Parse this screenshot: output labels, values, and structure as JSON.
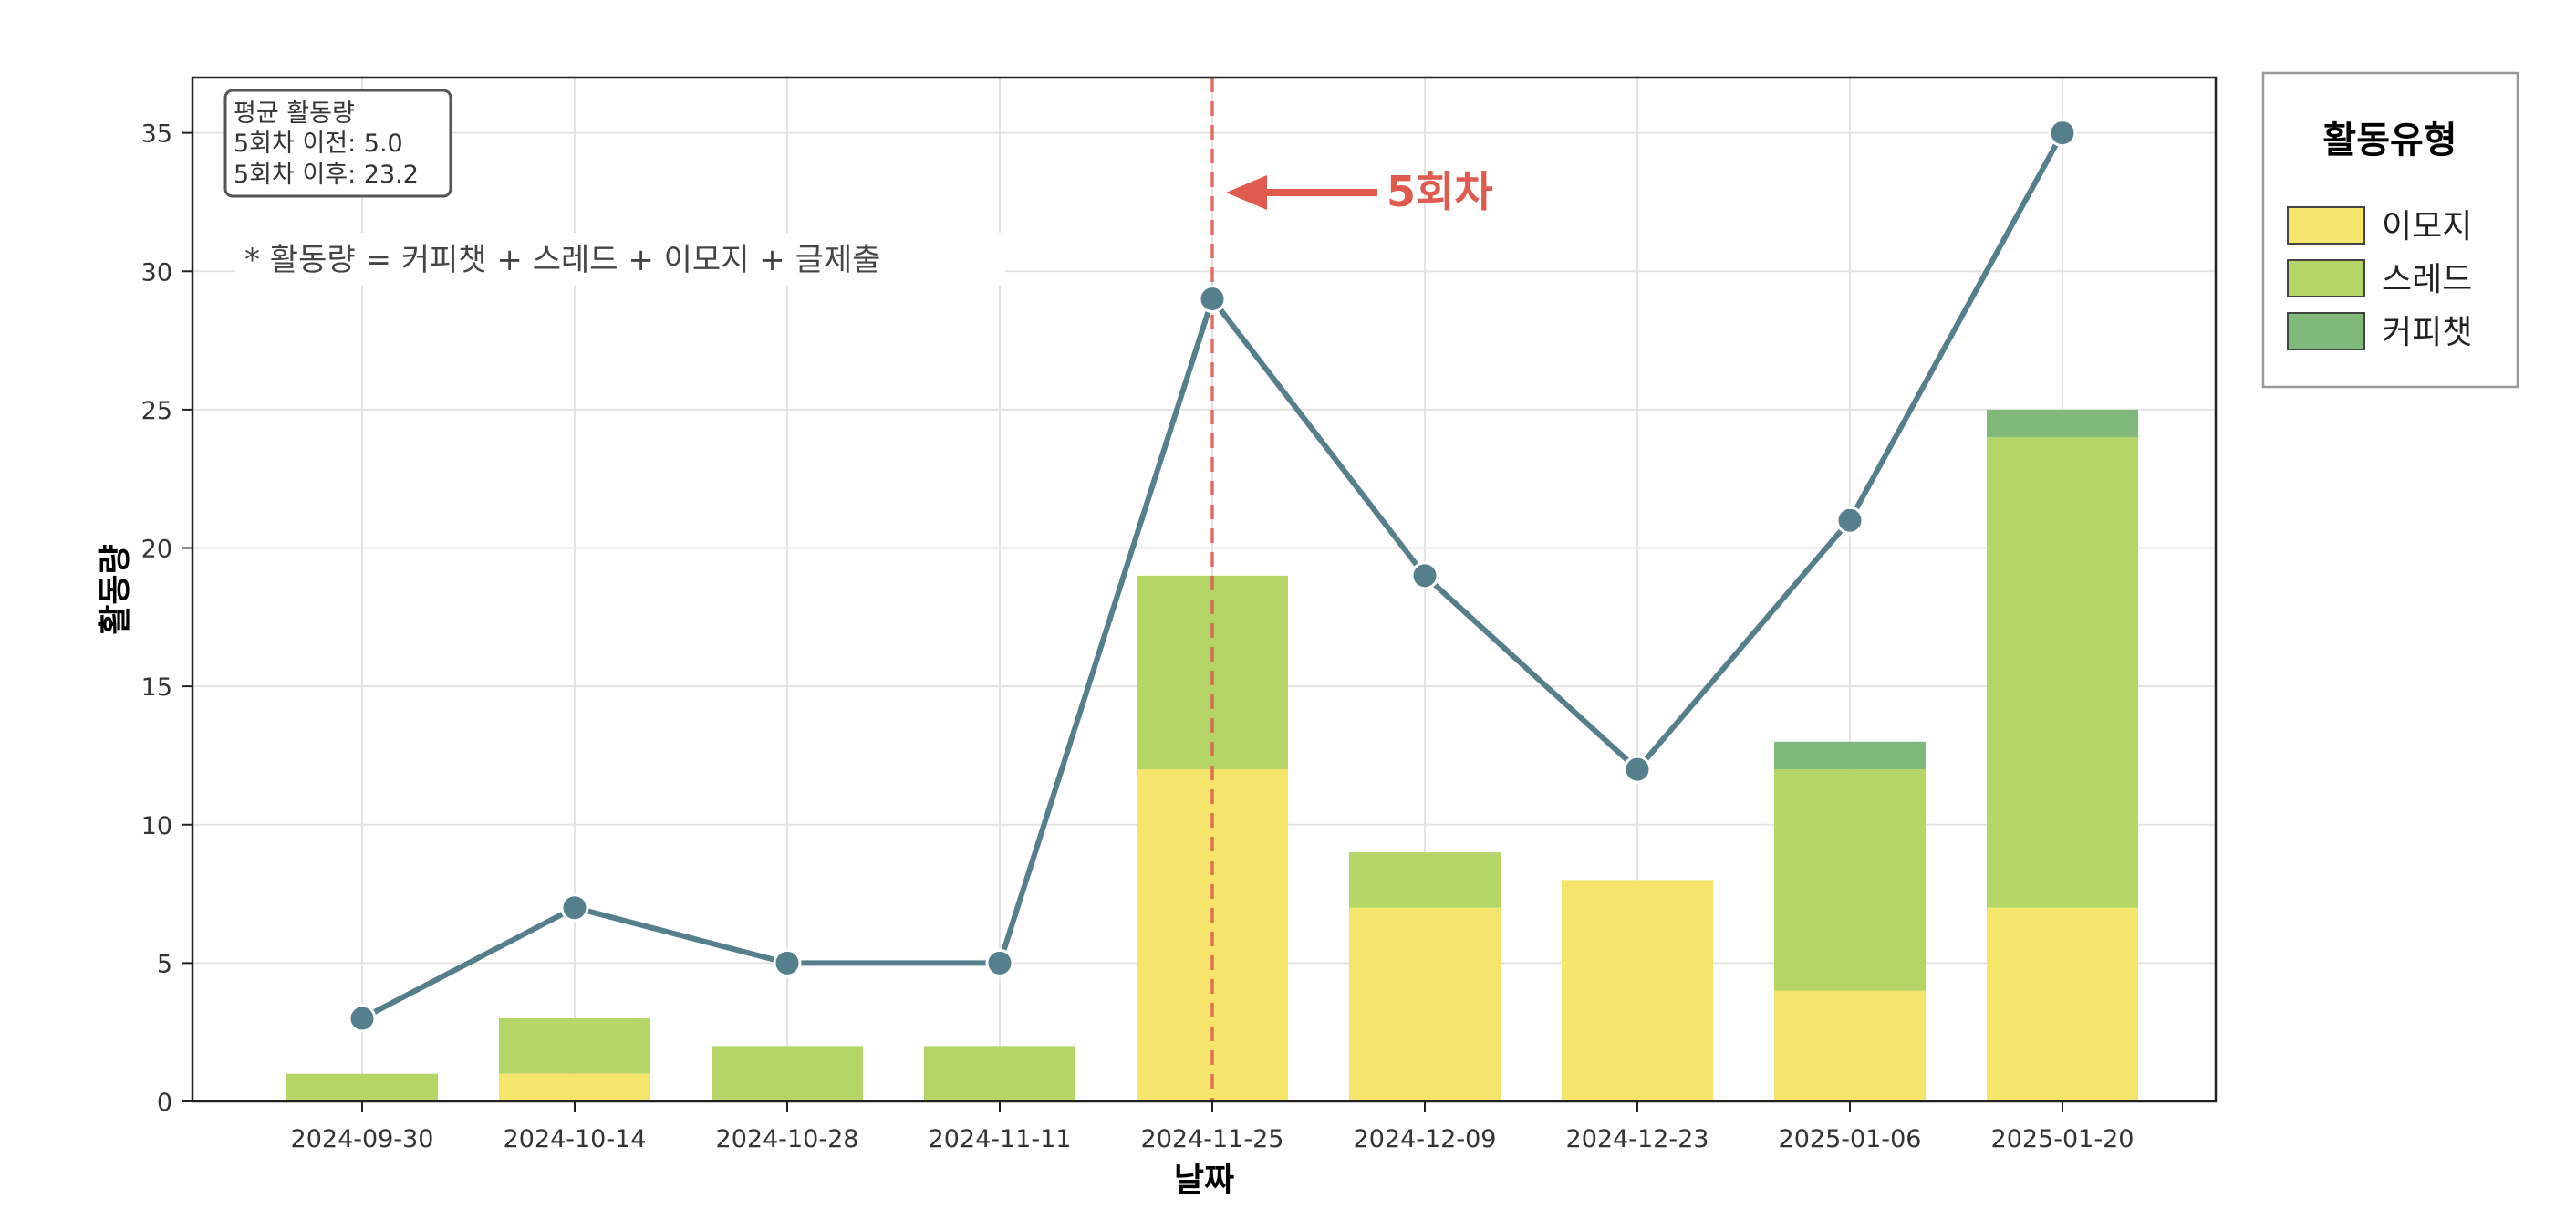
{
  "chart_data": {
    "type": "bar",
    "stacked": true,
    "categories": [
      "2024-09-30",
      "2024-10-14",
      "2024-10-28",
      "2024-11-11",
      "2024-11-25",
      "2024-12-09",
      "2024-12-23",
      "2025-01-06",
      "2025-01-20"
    ],
    "series": [
      {
        "name": "이모지",
        "color": "#f5e56b",
        "values": [
          0,
          1,
          0,
          0,
          12,
          7,
          8,
          4,
          7
        ]
      },
      {
        "name": "스레드",
        "color": "#b3d666",
        "values": [
          1,
          2,
          2,
          2,
          7,
          2,
          0,
          8,
          17
        ]
      },
      {
        "name": "커피챗",
        "color": "#7fba7a",
        "values": [
          0,
          0,
          0,
          0,
          0,
          0,
          0,
          1,
          1
        ]
      }
    ],
    "line": {
      "color": "#557f8c",
      "values": [
        3,
        7,
        5,
        5,
        29,
        19,
        12,
        21,
        35
      ]
    },
    "yticks": [
      0,
      5,
      10,
      15,
      20,
      25,
      30,
      35
    ],
    "ylim": [
      0,
      37
    ],
    "xlabel": "날짜",
    "ylabel": "활동량",
    "grid": true,
    "legend": {
      "title": "활동유형",
      "placement": "outside-top-right"
    },
    "vline": {
      "category": "2024-11-25",
      "color": "#e05a4e"
    },
    "annotation": {
      "text": "5회차",
      "color": "#e05a4e"
    },
    "avg_box": {
      "lines": [
        "평균 활동량",
        "5회차 이전: 5.0",
        "5회차 이후: 23.2"
      ]
    },
    "formula_note": "* 활동량 = 커피챗 + 스레드 + 이모지 + 글제출"
  }
}
